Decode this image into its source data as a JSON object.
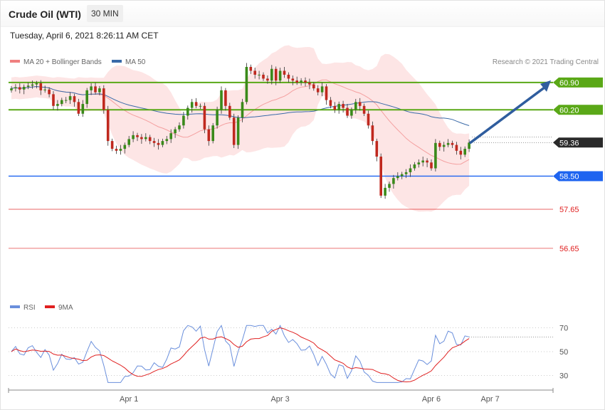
{
  "header": {
    "title": "Crude Oil (WTI)",
    "timeframe": "30 MIN"
  },
  "datetime": "Tuesday, April 6, 2021 8:26:11 AM CET",
  "credit": "Research © 2021 Trading Central",
  "colors": {
    "bollinger": "#f08080",
    "band_fill": "#fde0e0",
    "ma20": "#f4a0a0",
    "ma50": "#3a6aa8",
    "green_level": "#5aa817",
    "blue_level": "#1e64f0",
    "red_level": "#e02020",
    "last_price": "#2a2a2a",
    "arrow": "#2f5d9e",
    "rsi": "#6a8fdc",
    "rsi_ma": "#e02020",
    "candle_up": "#3a8a1a",
    "candle_down": "#c0281e"
  },
  "chart_data": [
    {
      "type": "candlestick",
      "legend": [
        {
          "label": "MA 20 + Bollinger Bands",
          "color": "#f08080"
        },
        {
          "label": "MA 50",
          "color": "#3a6aa8"
        }
      ],
      "ylim": [
        56.2,
        61.6
      ],
      "x_ticks": [
        {
          "label": "Apr 1",
          "index": 28
        },
        {
          "label": "Apr 3",
          "index": 64
        },
        {
          "label": "Apr 6",
          "index": 100
        },
        {
          "label": "Apr 7",
          "index": 114
        }
      ],
      "levels": [
        {
          "label": "60.90",
          "value": 60.9,
          "kind": "resistance",
          "color": "#5aa817"
        },
        {
          "label": "60.20",
          "value": 60.2,
          "kind": "resistance",
          "color": "#5aa817"
        },
        {
          "label": "59.36",
          "value": 59.36,
          "kind": "last",
          "color": "#2a2a2a"
        },
        {
          "label": "58.50",
          "value": 58.5,
          "kind": "pivot",
          "color": "#1e64f0"
        },
        {
          "label": "57.65",
          "value": 57.65,
          "kind": "support",
          "color": "#e02020"
        },
        {
          "label": "56.65",
          "value": 56.65,
          "kind": "support",
          "color": "#e02020"
        }
      ],
      "forecast_arrow": {
        "from": 59.36,
        "to": 60.9
      },
      "close": [
        60.75,
        60.78,
        60.72,
        60.79,
        60.82,
        60.85,
        60.88,
        60.7,
        60.72,
        60.6,
        60.3,
        60.35,
        60.45,
        60.45,
        60.55,
        60.4,
        60.1,
        60.35,
        60.7,
        60.8,
        60.65,
        60.75,
        60.2,
        59.4,
        59.2,
        59.15,
        59.2,
        59.3,
        59.45,
        59.55,
        59.5,
        59.45,
        59.5,
        59.4,
        59.35,
        59.3,
        59.4,
        59.45,
        59.6,
        59.7,
        59.8,
        60.05,
        60.25,
        60.4,
        60.3,
        60.3,
        59.7,
        59.4,
        59.8,
        60.2,
        60.7,
        60.3,
        60.0,
        59.3,
        60.0,
        60.4,
        61.3,
        61.2,
        61.1,
        61.1,
        61.0,
        60.95,
        61.25,
        60.95,
        61.2,
        61.1,
        61.0,
        60.95,
        60.9,
        60.95,
        60.9,
        60.85,
        60.75,
        60.65,
        60.8,
        60.45,
        60.3,
        60.2,
        60.35,
        60.25,
        60.05,
        60.2,
        60.4,
        60.3,
        60.1,
        59.8,
        59.4,
        59.0,
        58.0,
        58.2,
        58.3,
        58.45,
        58.5,
        58.55,
        58.6,
        58.7,
        58.8,
        58.85,
        58.9,
        58.85,
        58.7,
        59.35,
        59.25,
        59.3,
        59.35,
        59.3,
        59.15,
        59.05,
        59.2,
        59.36
      ]
    },
    {
      "type": "line",
      "legend": [
        {
          "label": "RSI",
          "color": "#6a8fdc"
        },
        {
          "label": "9MA",
          "color": "#e02020"
        }
      ],
      "ylim": [
        22,
        76
      ],
      "y_ticks": [
        {
          "label": "70",
          "value": 70
        },
        {
          "label": "50",
          "value": 50
        },
        {
          "label": "30",
          "value": 30
        }
      ]
    }
  ]
}
